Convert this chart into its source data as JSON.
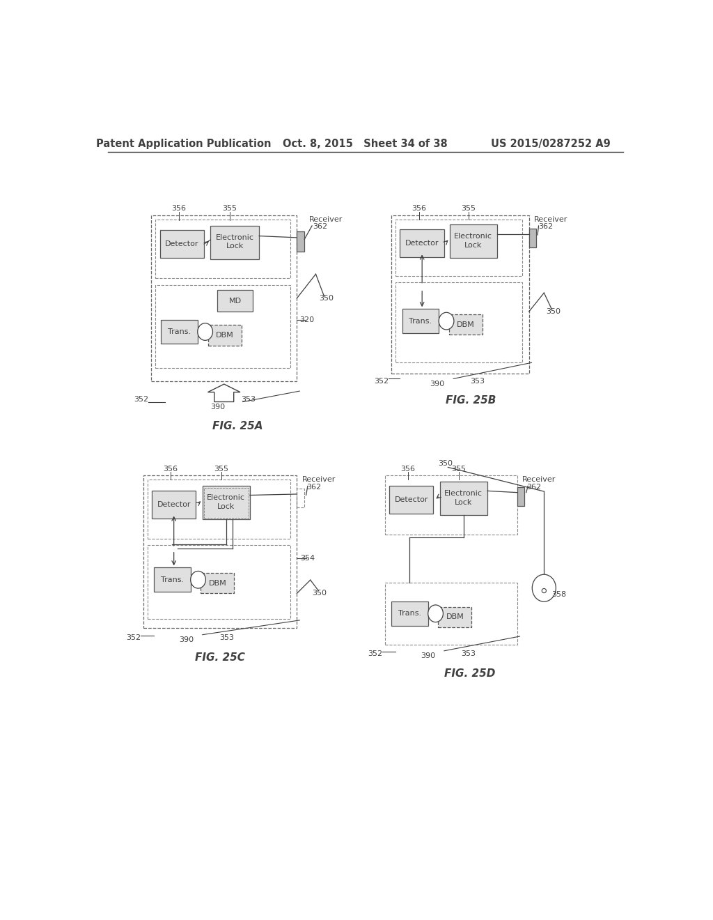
{
  "header_left": "Patent Application Publication",
  "header_mid": "Oct. 8, 2015   Sheet 34 of 38",
  "header_right": "US 2015/0287252 A9",
  "bg_color": "#ffffff",
  "line_color": "#404040",
  "fig_labels": [
    "FIG. 25A",
    "FIG. 25B",
    "FIG. 25C",
    "FIG. 25D"
  ]
}
